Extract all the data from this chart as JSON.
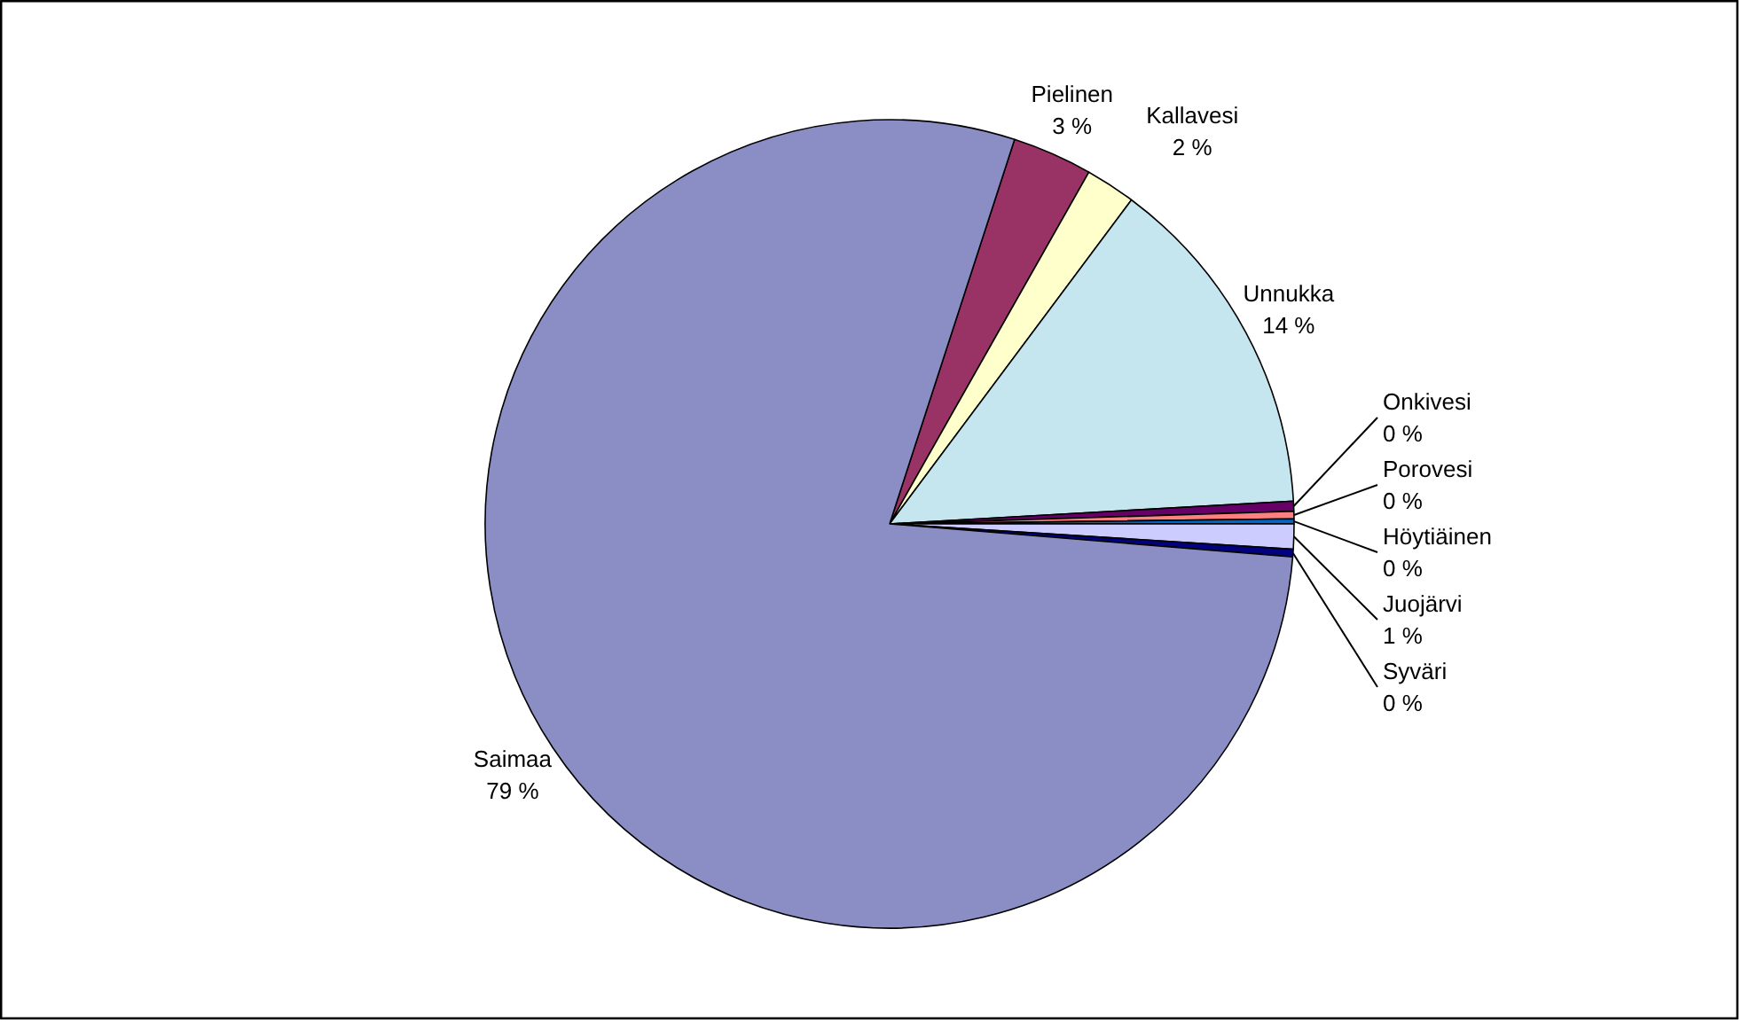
{
  "chart_data": {
    "type": "pie",
    "categories": [
      "Pielinen",
      "Kallavesi",
      "Unnukka",
      "Onkivesi",
      "Porovesi",
      "Höytiäinen",
      "Juojärvi",
      "Syväri",
      "Saimaa"
    ],
    "values": [
      3.2,
      2.0,
      13.9,
      0.4,
      0.3,
      0.2,
      1.0,
      0.3,
      78.7
    ],
    "value_labels": [
      "3 %",
      "2 %",
      "14 %",
      "0 %",
      "0 %",
      "0 %",
      "1 %",
      "0 %",
      "79 %"
    ],
    "colors": [
      "#993366",
      "#ffffcc",
      "#c5e6ef",
      "#660066",
      "#ff8080",
      "#0066cc",
      "#ccccff",
      "#000080",
      "#8a8ec4"
    ]
  }
}
